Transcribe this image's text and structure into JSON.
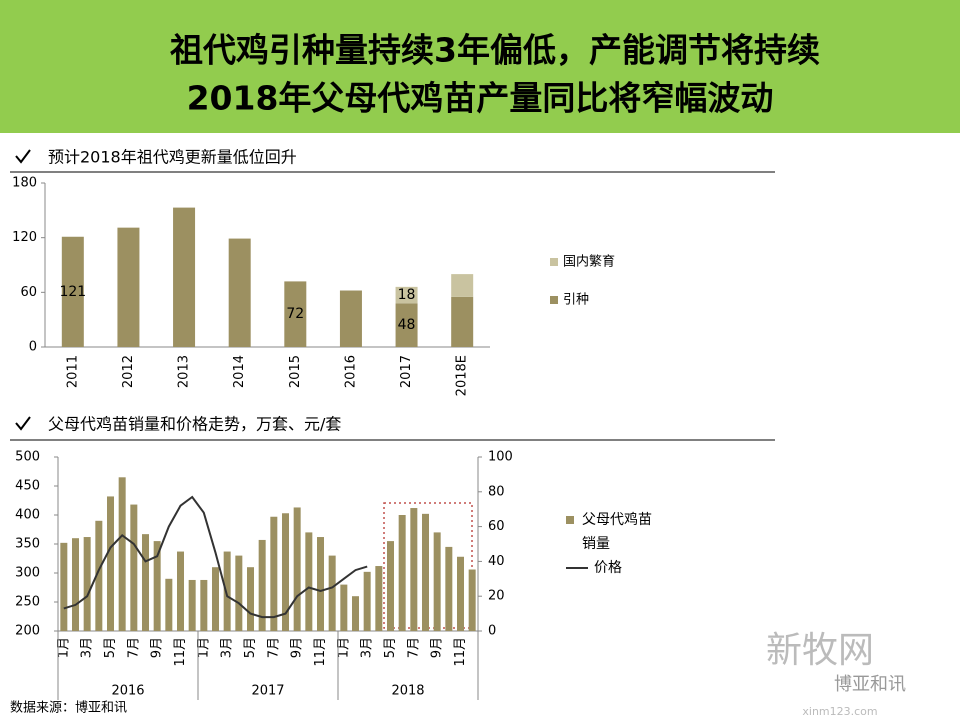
{
  "header": {
    "title": [
      "祖代鸡引种量持续3年偏低，产能调节将持续",
      "2018年父母代鸡苗产量同比将窄幅波动"
    ]
  },
  "chart_data": [
    {
      "type": "stacked_bar",
      "title": "预计2018年祖代鸡更新量低位回升",
      "categories": [
        "2011",
        "2012",
        "2013",
        "2014",
        "2015",
        "2016",
        "2017",
        "2018E"
      ],
      "series": [
        {
          "name": "引种",
          "color": "#9c9061",
          "values": [
            121,
            131,
            153,
            119,
            72,
            62,
            48,
            55
          ],
          "value_labels": [
            "121",
            null,
            null,
            null,
            "72",
            null,
            "48",
            null
          ]
        },
        {
          "name": "国内繁育",
          "color": "#c9c3a0",
          "values": [
            0,
            0,
            0,
            0,
            0,
            0,
            18,
            25
          ],
          "value_labels": [
            null,
            null,
            null,
            null,
            null,
            null,
            "18",
            null
          ]
        }
      ],
      "ylim": [
        0,
        180
      ],
      "yticks": [
        0,
        60,
        120,
        180
      ],
      "legend": "right"
    },
    {
      "type": "bar_line",
      "title": "父母代鸡苗销量和价格走势，万套、元/套",
      "categories": [
        "1月",
        null,
        "3月",
        null,
        "5月",
        null,
        "7月",
        null,
        "9月",
        null,
        "11月",
        null,
        "1月",
        null,
        "3月",
        null,
        "5月",
        null,
        "7月",
        null,
        "9月",
        null,
        "11月",
        null,
        "1月",
        null,
        "3月",
        null,
        "5月",
        null,
        "7月",
        null,
        "9月",
        null,
        "11月",
        null
      ],
      "groups": [
        "2016",
        "2017",
        "2018"
      ],
      "series": [
        {
          "name": "父母代鸡苗销量",
          "type": "bar",
          "color": "#9c9061",
          "values": [
            352,
            360,
            362,
            390,
            432,
            465,
            418,
            367,
            355,
            290,
            337,
            288,
            288,
            310,
            337,
            330,
            310,
            357,
            397,
            403,
            413,
            370,
            362,
            330,
            280,
            260,
            302,
            312,
            355,
            400,
            412,
            402,
            370,
            345,
            328,
            306
          ]
        },
        {
          "name": "价格",
          "type": "line",
          "axis": "y2",
          "color": "#333333",
          "values": [
            13,
            15,
            20,
            35,
            48,
            55,
            50,
            40,
            43,
            60,
            72,
            77,
            68,
            45,
            20,
            16,
            10,
            8,
            8,
            10,
            20,
            25,
            23,
            25,
            30,
            35,
            37,
            null,
            null,
            null,
            null,
            null,
            null,
            null,
            null,
            null
          ]
        }
      ],
      "ylim": [
        200,
        500
      ],
      "yticks": [
        200,
        250,
        300,
        350,
        400,
        450,
        500
      ],
      "y2lim": [
        0,
        100
      ],
      "y2ticks": [
        0,
        20,
        40,
        60,
        80,
        100
      ],
      "legend": "right"
    }
  ],
  "source": "数据来源：博亚和讯",
  "watermark": [
    "新牧网",
    "博亚和讯",
    "xinm123.com"
  ]
}
